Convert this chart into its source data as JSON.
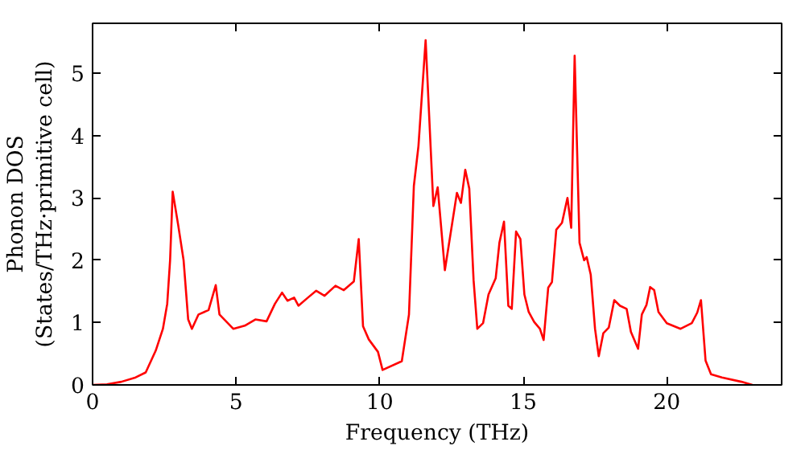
{
  "chart_data": {
    "type": "line",
    "xlabel": "Frequency (THz)",
    "ylabel": "Phonon DOS\n(States/THz·primitive cell)",
    "xlim": [
      0,
      24
    ],
    "ylim": [
      0,
      5.8
    ],
    "xticks": [
      0,
      5,
      10,
      15,
      20
    ],
    "yticks": [
      0,
      1,
      2,
      3,
      4,
      5
    ],
    "grid": false,
    "series": [
      {
        "color": "#ff0000",
        "x": [
          0,
          0.5,
          1.0,
          1.5,
          1.85,
          2.2,
          2.45,
          2.6,
          2.7,
          2.79,
          2.98,
          3.17,
          3.33,
          3.46,
          3.69,
          4.04,
          4.29,
          4.42,
          4.9,
          5.3,
          5.67,
          6.06,
          6.35,
          6.6,
          6.79,
          7.02,
          7.17,
          7.5,
          7.79,
          8.08,
          8.46,
          8.75,
          9.1,
          9.27,
          9.42,
          9.62,
          9.94,
          10.1,
          10.77,
          11.02,
          11.19,
          11.35,
          11.6,
          11.87,
          12.02,
          12.27,
          12.69,
          12.83,
          12.98,
          13.12,
          13.27,
          13.4,
          13.6,
          13.79,
          14.04,
          14.17,
          14.33,
          14.48,
          14.6,
          14.75,
          14.9,
          15.04,
          15.19,
          15.38,
          15.58,
          15.71,
          15.87,
          16.0,
          16.15,
          16.35,
          16.54,
          16.67,
          16.79,
          16.96,
          17.12,
          17.21,
          17.35,
          17.5,
          17.63,
          17.79,
          17.98,
          18.17,
          18.37,
          18.6,
          18.75,
          19.0,
          19.13,
          19.29,
          19.42,
          19.56,
          19.71,
          20.0,
          20.48,
          20.87,
          21.06,
          21.19,
          21.35,
          21.54,
          21.92,
          22.6,
          22.98
        ],
        "values": [
          0,
          0.01,
          0.05,
          0.12,
          0.2,
          0.55,
          0.9,
          1.3,
          2.0,
          3.1,
          2.57,
          2.0,
          1.05,
          0.9,
          1.13,
          1.2,
          1.6,
          1.13,
          0.9,
          0.95,
          1.05,
          1.02,
          1.3,
          1.48,
          1.35,
          1.4,
          1.27,
          1.4,
          1.51,
          1.43,
          1.59,
          1.52,
          1.66,
          2.34,
          0.94,
          0.73,
          0.53,
          0.24,
          0.38,
          1.13,
          3.19,
          3.83,
          5.53,
          2.87,
          3.17,
          1.84,
          3.08,
          2.92,
          3.45,
          3.15,
          1.68,
          0.9,
          0.99,
          1.45,
          1.71,
          2.28,
          2.62,
          1.27,
          1.22,
          2.46,
          2.34,
          1.45,
          1.17,
          1.01,
          0.9,
          0.72,
          1.56,
          1.65,
          2.49,
          2.6,
          3.0,
          2.52,
          5.28,
          2.28,
          2.0,
          2.05,
          1.77,
          0.9,
          0.46,
          0.83,
          0.92,
          1.36,
          1.27,
          1.22,
          0.85,
          0.58,
          1.13,
          1.28,
          1.57,
          1.52,
          1.17,
          0.99,
          0.9,
          0.99,
          1.16,
          1.36,
          0.39,
          0.17,
          0.12,
          0.05,
          0
        ]
      }
    ]
  }
}
